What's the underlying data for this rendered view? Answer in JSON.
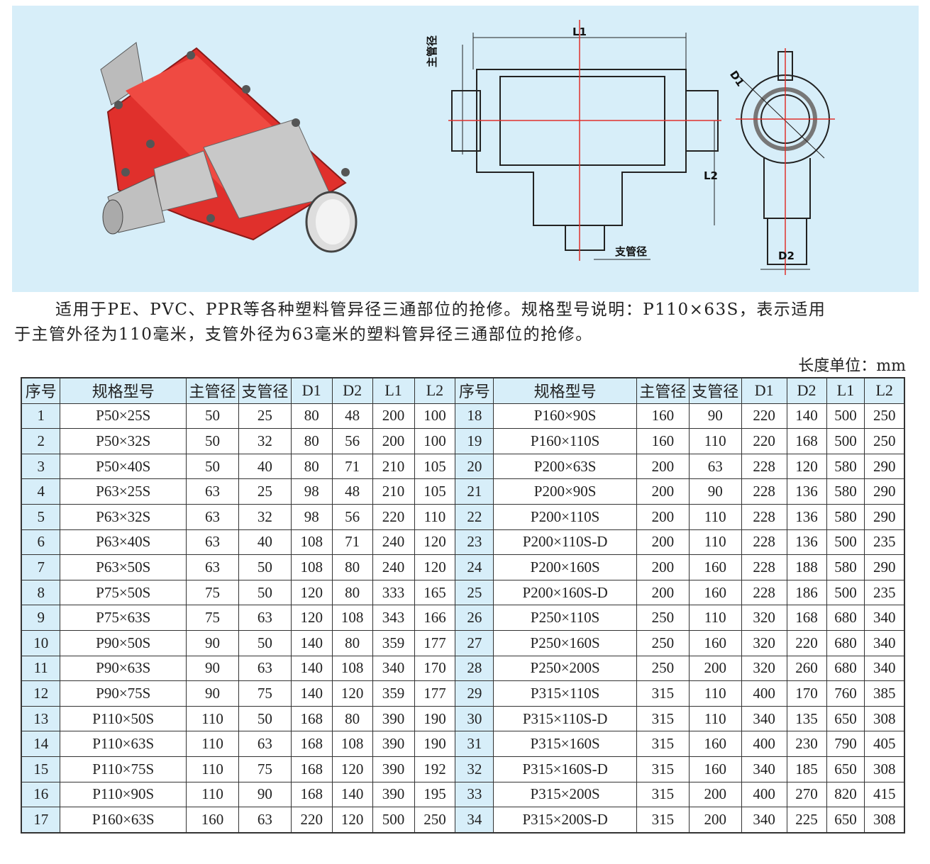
{
  "colors": {
    "banner": "#d7eef9",
    "fitting_red": "#e0302c",
    "header_bg": "#d7eef9"
  },
  "drawing_labels": {
    "l1": "L1",
    "main_pipe": "主管径",
    "d1": "D1",
    "l2": "L2",
    "branch_pipe": "支管径",
    "d2": "D2"
  },
  "description": {
    "line1": "适用于PE、PVC、PPR等各种塑料管异径三通部位的抢修。规格型号说明：P110×63S，表示适用",
    "line2": "于主管外径为110毫米，支管外径为63毫米的塑料管异径三通部位的抢修。"
  },
  "unit_label": "长度单位：mm",
  "table": {
    "headers": [
      "序号",
      "规格型号",
      "主管径",
      "支管径",
      "D1",
      "D2",
      "L1",
      "L2",
      "序号",
      "规格型号",
      "主管径",
      "支管径",
      "D1",
      "D2",
      "L1",
      "L2"
    ],
    "left_rows": [
      [
        "1",
        "P50×25S",
        "50",
        "25",
        "80",
        "48",
        "200",
        "100"
      ],
      [
        "2",
        "P50×32S",
        "50",
        "32",
        "80",
        "56",
        "200",
        "100"
      ],
      [
        "3",
        "P50×40S",
        "50",
        "40",
        "80",
        "71",
        "210",
        "105"
      ],
      [
        "4",
        "P63×25S",
        "63",
        "25",
        "98",
        "48",
        "210",
        "105"
      ],
      [
        "5",
        "P63×32S",
        "63",
        "32",
        "98",
        "56",
        "220",
        "110"
      ],
      [
        "6",
        "P63×40S",
        "63",
        "40",
        "108",
        "71",
        "240",
        "120"
      ],
      [
        "7",
        "P63×50S",
        "63",
        "50",
        "108",
        "80",
        "240",
        "120"
      ],
      [
        "8",
        "P75×50S",
        "75",
        "50",
        "120",
        "80",
        "333",
        "165"
      ],
      [
        "9",
        "P75×63S",
        "75",
        "63",
        "120",
        "108",
        "343",
        "166"
      ],
      [
        "10",
        "P90×50S",
        "90",
        "50",
        "140",
        "80",
        "359",
        "177"
      ],
      [
        "11",
        "P90×63S",
        "90",
        "63",
        "140",
        "108",
        "340",
        "170"
      ],
      [
        "12",
        "P90×75S",
        "90",
        "75",
        "140",
        "120",
        "359",
        "177"
      ],
      [
        "13",
        "P110×50S",
        "110",
        "50",
        "168",
        "80",
        "390",
        "190"
      ],
      [
        "14",
        "P110×63S",
        "110",
        "63",
        "168",
        "108",
        "390",
        "190"
      ],
      [
        "15",
        "P110×75S",
        "110",
        "75",
        "168",
        "120",
        "390",
        "192"
      ],
      [
        "16",
        "P110×90S",
        "110",
        "90",
        "168",
        "140",
        "390",
        "195"
      ],
      [
        "17",
        "P160×63S",
        "160",
        "63",
        "220",
        "120",
        "500",
        "250"
      ]
    ],
    "right_rows": [
      [
        "18",
        "P160×90S",
        "160",
        "90",
        "220",
        "140",
        "500",
        "250"
      ],
      [
        "19",
        "P160×110S",
        "160",
        "110",
        "220",
        "168",
        "500",
        "250"
      ],
      [
        "20",
        "P200×63S",
        "200",
        "63",
        "228",
        "120",
        "580",
        "290"
      ],
      [
        "21",
        "P200×90S",
        "200",
        "90",
        "228",
        "136",
        "580",
        "290"
      ],
      [
        "22",
        "P200×110S",
        "200",
        "110",
        "228",
        "136",
        "580",
        "290"
      ],
      [
        "23",
        "P200×110S-D",
        "200",
        "110",
        "228",
        "136",
        "500",
        "235"
      ],
      [
        "24",
        "P200×160S",
        "200",
        "160",
        "228",
        "188",
        "580",
        "290"
      ],
      [
        "25",
        "P200×160S-D",
        "200",
        "160",
        "228",
        "186",
        "500",
        "235"
      ],
      [
        "26",
        "P250×110S",
        "250",
        "110",
        "320",
        "168",
        "680",
        "340"
      ],
      [
        "27",
        "P250×160S",
        "250",
        "160",
        "320",
        "220",
        "680",
        "340"
      ],
      [
        "28",
        "P250×200S",
        "250",
        "200",
        "320",
        "260",
        "680",
        "340"
      ],
      [
        "29",
        "P315×110S",
        "315",
        "110",
        "400",
        "170",
        "760",
        "385"
      ],
      [
        "30",
        "P315×110S-D",
        "315",
        "110",
        "340",
        "135",
        "650",
        "308"
      ],
      [
        "31",
        "P315×160S",
        "315",
        "160",
        "400",
        "230",
        "790",
        "405"
      ],
      [
        "32",
        "P315×160S-D",
        "315",
        "160",
        "340",
        "185",
        "650",
        "308"
      ],
      [
        "33",
        "P315×200S",
        "315",
        "200",
        "400",
        "270",
        "820",
        "415"
      ],
      [
        "34",
        "P315×200S-D",
        "315",
        "200",
        "340",
        "225",
        "650",
        "308"
      ]
    ]
  }
}
